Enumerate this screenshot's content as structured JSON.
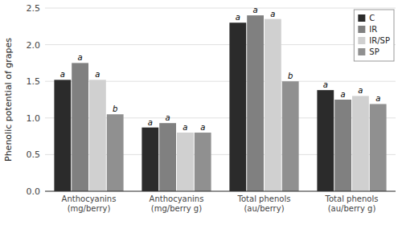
{
  "chart_data": {
    "type": "bar",
    "categories": [
      "Anthocyanins (mg/berry)",
      "Anthocyanins (mg/berry g)",
      "Total phenols (au/berry)",
      "Total phenols (au/berry g)"
    ],
    "series": [
      {
        "name": "C",
        "color": "#2b2b2b",
        "values": [
          1.52,
          0.87,
          2.3,
          1.38
        ],
        "annotations": [
          "a",
          "a",
          "a",
          "a"
        ]
      },
      {
        "name": "IR",
        "color": "#808080",
        "values": [
          1.75,
          0.93,
          2.4,
          1.25
        ],
        "annotations": [
          "a",
          "a",
          "a",
          "a"
        ]
      },
      {
        "name": "IR/SP",
        "color": "#d0d0d0",
        "values": [
          1.52,
          0.8,
          2.35,
          1.3
        ],
        "annotations": [
          "a",
          "a",
          "a",
          "a"
        ]
      },
      {
        "name": "SP",
        "color": "#909090",
        "values": [
          1.05,
          0.8,
          1.5,
          1.19
        ],
        "annotations": [
          "b",
          "a",
          "b",
          "a"
        ]
      }
    ],
    "y_label": "Phenolic potential of grapes",
    "ylim": [
      0,
      2.5
    ],
    "yticks": [
      {
        "value": 0,
        "label": "0.0"
      },
      0.5,
      {
        "value": 1.0,
        "label": "1.0"
      },
      1.5,
      {
        "value": 2.0,
        "label": "2.0"
      },
      2.5
    ],
    "grid": true,
    "legend": "upper right"
  }
}
